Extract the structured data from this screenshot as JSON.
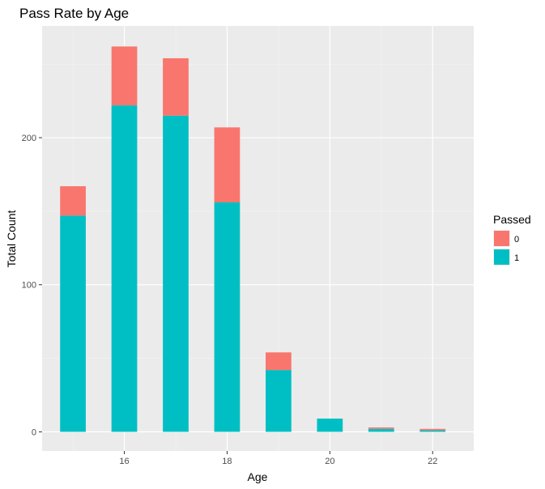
{
  "chart_data": {
    "type": "bar",
    "stacked": true,
    "title": "Pass Rate by Age",
    "xlabel": "Age",
    "ylabel": "Total Count",
    "x": [
      15,
      16,
      17,
      18,
      19,
      20,
      21,
      22
    ],
    "x_ticks": [
      16,
      18,
      20,
      22
    ],
    "y_ticks": [
      0,
      100,
      200
    ],
    "xlim": [
      14.4,
      22.8
    ],
    "ylim": [
      -13,
      276
    ],
    "grid": true,
    "legend_position": "right",
    "legend_title": "Passed",
    "series": [
      {
        "name": "0",
        "color": "#F8766D",
        "values": [
          20,
          40,
          39,
          51,
          12,
          0,
          1,
          1
        ]
      },
      {
        "name": "1",
        "color": "#00BFC4",
        "values": [
          147,
          222,
          215,
          156,
          42,
          9,
          2,
          1
        ]
      }
    ]
  }
}
